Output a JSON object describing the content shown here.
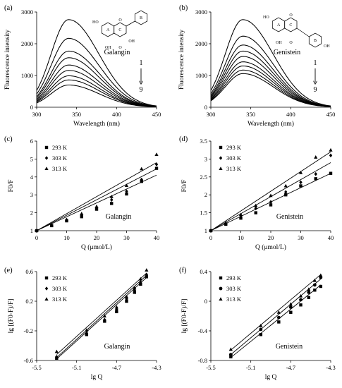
{
  "chart_data": [
    {
      "panel": "(a)",
      "type": "line",
      "compound": "Galangin",
      "xlabel": "Wavelength (nm)",
      "ylabel": "Fluorescence intensity",
      "xlim": [
        300,
        450
      ],
      "ylim": [
        0,
        3000
      ],
      "xticks": [
        "300",
        "350",
        "400",
        "450"
      ],
      "yticks": [
        "0",
        "1000",
        "2000",
        "3000"
      ],
      "peak_wavelength": 340,
      "series": [
        {
          "values": [
            2760
          ]
        },
        {
          "values": [
            2170
          ]
        },
        {
          "values": [
            1770
          ]
        },
        {
          "values": [
            1560
          ]
        },
        {
          "values": [
            1330
          ]
        },
        {
          "values": [
            1160
          ]
        },
        {
          "values": [
            990
          ]
        },
        {
          "values": [
            860
          ]
        },
        {
          "values": [
            700
          ]
        }
      ],
      "arrow_labels": [
        "1",
        "9"
      ],
      "structure_labels": [
        "HO",
        "A",
        "C",
        "B",
        "OH",
        "OH",
        "O",
        "O"
      ]
    },
    {
      "panel": "(b)",
      "type": "line",
      "compound": "Genistein",
      "xlabel": "Wavelength (nm)",
      "ylabel": "Fluorescence intensity",
      "xlim": [
        300,
        450
      ],
      "ylim": [
        0,
        3000
      ],
      "xticks": [
        "300",
        "350",
        "400",
        "450"
      ],
      "yticks": [
        "0",
        "1000",
        "2000",
        "3000"
      ],
      "peak_wavelength": 340,
      "series": [
        {
          "values": [
            2760
          ]
        },
        {
          "values": [
            2240
          ]
        },
        {
          "values": [
            1960
          ]
        },
        {
          "values": [
            1770
          ]
        },
        {
          "values": [
            1600
          ]
        },
        {
          "values": [
            1430
          ]
        },
        {
          "values": [
            1300
          ]
        },
        {
          "values": [
            1170
          ]
        },
        {
          "values": [
            1060
          ]
        }
      ],
      "arrow_labels": [
        "1",
        "9"
      ],
      "structure_labels": [
        "HO",
        "A",
        "C",
        "B",
        "OH",
        "O",
        "O",
        "OH"
      ]
    },
    {
      "panel": "(c)",
      "type": "scatter",
      "compound": "Galangin",
      "xlabel": "Q (μmol/L)",
      "ylabel": "F0/F",
      "xlim": [
        0,
        40
      ],
      "ylim": [
        1,
        6
      ],
      "xticks": [
        "0",
        "10",
        "20",
        "30",
        "40"
      ],
      "yticks": [
        "1",
        "2",
        "3",
        "4",
        "5",
        "6"
      ],
      "x": [
        0,
        5,
        10,
        15,
        20,
        25,
        30,
        35,
        40
      ],
      "series": [
        {
          "name": "293 K",
          "marker": "square",
          "values": [
            1.0,
            1.28,
            1.55,
            1.78,
            2.2,
            2.52,
            3.05,
            3.75,
            4.48
          ],
          "fit": [
            1.0,
            4.1
          ]
        },
        {
          "name": "303 K",
          "marker": "diamond",
          "values": [
            1.0,
            1.3,
            1.6,
            1.9,
            2.3,
            2.72,
            3.2,
            3.85,
            4.7
          ],
          "fit": [
            1.0,
            4.45
          ]
        },
        {
          "name": "313 K",
          "marker": "triangle",
          "values": [
            1.0,
            1.32,
            1.62,
            1.95,
            2.35,
            2.9,
            3.52,
            4.45,
            5.25
          ],
          "fit": [
            1.0,
            4.8
          ]
        }
      ]
    },
    {
      "panel": "(d)",
      "type": "scatter",
      "compound": "Genistein",
      "xlabel": "Q (μmol/L)",
      "ylabel": "F0/F",
      "xlim": [
        0,
        40
      ],
      "ylim": [
        1,
        3.5
      ],
      "xticks": [
        "0",
        "10",
        "20",
        "30",
        "40"
      ],
      "yticks": [
        "1",
        "1.5",
        "2",
        "2.5",
        "3",
        "3.5"
      ],
      "x": [
        0,
        5,
        10,
        15,
        20,
        25,
        30,
        35,
        40
      ],
      "series": [
        {
          "name": "293 K",
          "marker": "square",
          "values": [
            1.0,
            1.18,
            1.35,
            1.5,
            1.72,
            2.0,
            2.25,
            2.45,
            2.6
          ],
          "fit": [
            1.0,
            2.6
          ]
        },
        {
          "name": "303 K",
          "marker": "diamond",
          "values": [
            1.0,
            1.2,
            1.38,
            1.62,
            1.8,
            2.08,
            2.35,
            2.58,
            3.1
          ],
          "fit": [
            1.0,
            2.9
          ]
        },
        {
          "name": "313 K",
          "marker": "triangle",
          "values": [
            1.0,
            1.22,
            1.45,
            1.7,
            1.98,
            2.25,
            2.62,
            3.05,
            3.25
          ],
          "fit": [
            1.0,
            3.2
          ]
        }
      ]
    },
    {
      "panel": "(e)",
      "type": "scatter",
      "compound": "Galangin",
      "xlabel": "lg Q",
      "ylabel": "lg [(F0-F)/F]",
      "xlim": [
        -5.5,
        -4.3
      ],
      "ylim": [
        -0.6,
        0.6
      ],
      "xticks": [
        "-5.5",
        "-5.1",
        "-4.7",
        "-4.3"
      ],
      "yticks": [
        "-0.6",
        "-0.2",
        "0.2",
        "0.6"
      ],
      "x": [
        -5.3,
        -5.0,
        -4.82,
        -4.7,
        -4.6,
        -4.52,
        -4.46,
        -4.4
      ],
      "series": [
        {
          "name": "293 K",
          "marker": "square",
          "values": [
            -0.57,
            -0.25,
            -0.07,
            0.06,
            0.2,
            0.32,
            0.43,
            0.53
          ],
          "fit": [
            -0.58,
            0.52
          ]
        },
        {
          "name": "303 K",
          "marker": "diamond",
          "values": [
            -0.55,
            -0.23,
            -0.05,
            0.09,
            0.23,
            0.35,
            0.46,
            0.56
          ],
          "fit": [
            -0.56,
            0.55
          ]
        },
        {
          "name": "313 K",
          "marker": "triangle",
          "values": [
            -0.48,
            -0.19,
            0.0,
            0.12,
            0.26,
            0.38,
            0.5,
            0.62
          ],
          "fit": [
            -0.52,
            0.58
          ]
        }
      ]
    },
    {
      "panel": "(f)",
      "type": "scatter",
      "compound": "Genistein",
      "xlabel": "lg Q",
      "ylabel": "lg [(F0-F)/F]",
      "xlim": [
        -5.5,
        -4.3
      ],
      "ylim": [
        -0.8,
        0.4
      ],
      "xticks": [
        "-5.5",
        "-5.1",
        "-4.7",
        "-4.3"
      ],
      "yticks": [
        "-0.8",
        "-0.4",
        "0",
        "0.4"
      ],
      "x": [
        -5.3,
        -5.0,
        -4.82,
        -4.7,
        -4.6,
        -4.52,
        -4.46,
        -4.4
      ],
      "series": [
        {
          "name": "293 K",
          "marker": "square",
          "values": [
            -0.75,
            -0.45,
            -0.28,
            -0.15,
            -0.05,
            0.05,
            0.15,
            0.2
          ],
          "fit": [
            -0.76,
            0.22
          ]
        },
        {
          "name": "303 K",
          "marker": "circle",
          "values": [
            -0.72,
            -0.38,
            -0.22,
            -0.08,
            0.02,
            0.12,
            0.22,
            0.32
          ],
          "fit": [
            -0.72,
            0.3
          ]
        },
        {
          "name": "313 K",
          "marker": "triangle",
          "values": [
            -0.65,
            -0.33,
            -0.15,
            -0.04,
            0.07,
            0.16,
            0.28,
            0.35
          ],
          "fit": [
            -0.66,
            0.36
          ]
        }
      ]
    }
  ]
}
